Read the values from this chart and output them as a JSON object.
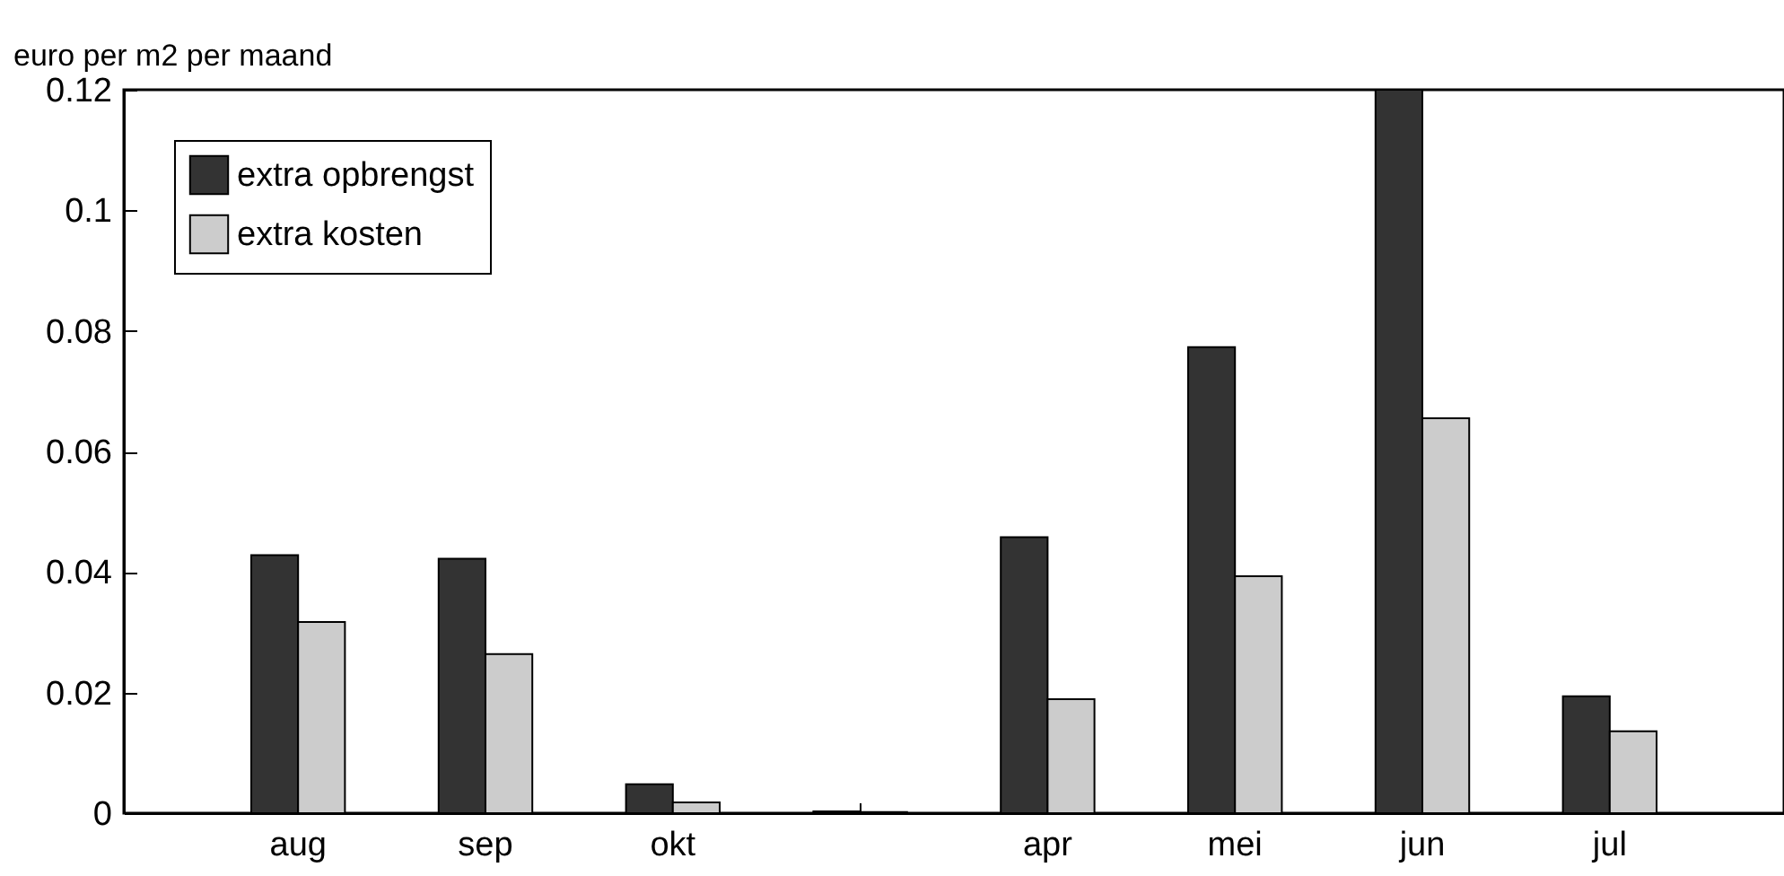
{
  "chart_data": {
    "type": "bar",
    "ylabel": "euro per m2 per maand",
    "categories": [
      "aug",
      "sep",
      "okt",
      null,
      "apr",
      "mei",
      "jun",
      "jul"
    ],
    "series": [
      {
        "name": "extra opbrengst",
        "color": "#333333",
        "values": [
          0.0428,
          0.0422,
          0.0048,
          0.0003,
          0.0458,
          0.0773,
          0.12,
          0.0194
        ]
      },
      {
        "name": "extra kosten",
        "color": "#cccccc",
        "values": [
          0.0317,
          0.0264,
          0.0018,
          0.0002,
          0.0189,
          0.0393,
          0.0655,
          0.0136
        ]
      }
    ],
    "ylim": [
      0,
      0.12
    ],
    "yticks": [
      0,
      0.02,
      0.04,
      0.06,
      0.08,
      0.1,
      0.12
    ],
    "grid": false,
    "legend": "top left"
  }
}
